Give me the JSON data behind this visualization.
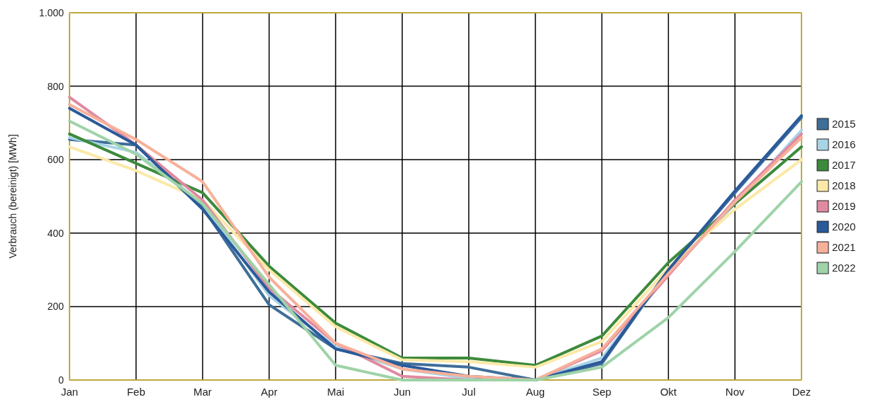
{
  "chart_data": {
    "type": "line",
    "ylabel": "Verbrauch (bereinigt) [MWh]",
    "categories": [
      "Jan",
      "Feb",
      "Mar",
      "Apr",
      "Mai",
      "Jun",
      "Jul",
      "Aug",
      "Sep",
      "Okt",
      "Nov",
      "Dez"
    ],
    "ylim": [
      0,
      1000
    ],
    "yticks": [
      0,
      200,
      400,
      600,
      800,
      {
        "value": 1000,
        "label": "1.000"
      }
    ],
    "grid": true,
    "legend": "right",
    "marker": "none",
    "line_style": "solid",
    "series": [
      {
        "name": "2015",
        "color": "#3f6e99",
        "values": [
          655,
          640,
          470,
          205,
          85,
          45,
          35,
          0,
          45,
          300,
          510,
          715
        ]
      },
      {
        "name": "2016",
        "color": "#a8d4e6",
        "values": [
          660,
          620,
          480,
          230,
          90,
          30,
          5,
          0,
          60,
          290,
          480,
          680
        ]
      },
      {
        "name": "2017",
        "color": "#3c8a3c",
        "values": [
          670,
          590,
          510,
          310,
          155,
          60,
          60,
          40,
          120,
          320,
          480,
          635
        ]
      },
      {
        "name": "2018",
        "color": "#fbe9a8",
        "values": [
          635,
          570,
          490,
          300,
          145,
          55,
          50,
          35,
          105,
          305,
          465,
          600
        ]
      },
      {
        "name": "2019",
        "color": "#e08aa0",
        "values": [
          770,
          640,
          490,
          250,
          100,
          10,
          0,
          0,
          80,
          285,
          490,
          670
        ]
      },
      {
        "name": "2020",
        "color": "#2a5a9a",
        "values": [
          740,
          640,
          465,
          240,
          85,
          40,
          10,
          0,
          50,
          300,
          515,
          720
        ]
      },
      {
        "name": "2021",
        "color": "#f7b09a",
        "values": [
          750,
          655,
          540,
          280,
          100,
          30,
          10,
          0,
          85,
          290,
          485,
          660
        ]
      },
      {
        "name": "2022",
        "color": "#9fd3a8",
        "values": [
          705,
          615,
          480,
          260,
          40,
          0,
          0,
          0,
          35,
          170,
          350,
          540
        ]
      }
    ]
  }
}
